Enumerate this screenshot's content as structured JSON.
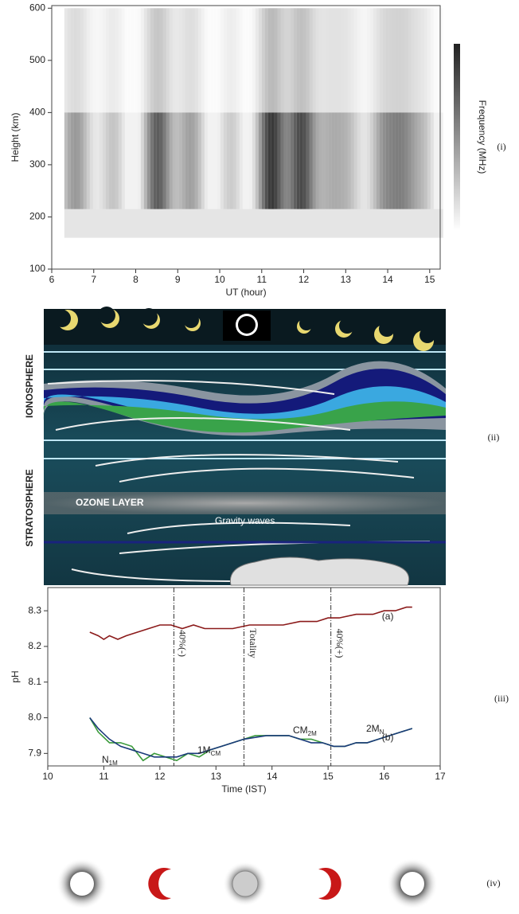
{
  "chart_data": [
    {
      "type": "heatmap",
      "xlabel": "UT (hour)",
      "ylabel": "Height (km)",
      "colorbar_label": "Frequency (MHz)",
      "panel_label": "(i)",
      "xlim": [
        6,
        15.25
      ],
      "ylim": [
        100,
        605
      ],
      "xticks": [
        6,
        7,
        8,
        9,
        10,
        11,
        12,
        13,
        14,
        15
      ],
      "yticks": [
        100,
        200,
        300,
        400,
        500,
        600
      ]
    },
    {
      "type": "line",
      "xlabel": "Time (IST)",
      "ylabel": "pH",
      "panel_label": "(iii)",
      "xlim": [
        10,
        17
      ],
      "ylim": [
        7.865,
        8.365
      ],
      "xticks": [
        10,
        11,
        12,
        13,
        14,
        15,
        16,
        17
      ],
      "yticks": [
        7.9,
        {
          "value": 8,
          "label": "8.0"
        },
        8.1,
        8.2,
        8.3
      ],
      "series": [
        {
          "name": "(a)",
          "color": "#8b1a1a",
          "x": [
            10.75,
            10.9,
            11.0,
            11.1,
            11.25,
            11.4,
            11.6,
            11.8,
            12.0,
            12.2,
            12.4,
            12.6,
            12.8,
            13.0,
            13.3,
            13.6,
            13.9,
            14.2,
            14.5,
            14.8,
            15.0,
            15.2,
            15.5,
            15.8,
            16.0,
            16.2,
            16.4,
            16.5
          ],
          "values": [
            8.24,
            8.23,
            8.22,
            8.23,
            8.22,
            8.23,
            8.24,
            8.25,
            8.26,
            8.26,
            8.25,
            8.26,
            8.25,
            8.25,
            8.25,
            8.26,
            8.26,
            8.26,
            8.27,
            8.27,
            8.28,
            8.28,
            8.29,
            8.29,
            8.3,
            8.3,
            8.31,
            8.31
          ]
        },
        {
          "color": "#3a9a3a",
          "x": [
            10.75,
            10.9,
            11.1,
            11.3,
            11.5,
            11.7,
            11.9,
            12.1,
            12.3,
            12.5,
            12.7,
            12.9,
            13.1,
            13.3,
            13.5,
            13.7,
            13.9,
            14.1,
            14.3,
            14.5,
            14.7,
            14.9,
            15.1,
            15.3,
            15.5,
            15.7,
            15.9,
            16.1,
            16.3,
            16.5
          ],
          "values": [
            8.0,
            7.96,
            7.93,
            7.93,
            7.92,
            7.88,
            7.9,
            7.89,
            7.88,
            7.9,
            7.89,
            7.91,
            7.92,
            7.93,
            7.94,
            7.95,
            7.95,
            7.95,
            7.95,
            7.94,
            7.94,
            7.93,
            7.92,
            7.92,
            7.93,
            7.93,
            7.94,
            7.95,
            7.96,
            7.97
          ]
        },
        {
          "name": "(b)",
          "color": "#1a3a7a",
          "x": [
            10.75,
            10.9,
            11.1,
            11.3,
            11.5,
            11.7,
            11.9,
            12.1,
            12.3,
            12.5,
            12.7,
            12.9,
            13.1,
            13.3,
            13.5,
            13.7,
            13.9,
            14.1,
            14.3,
            14.5,
            14.7,
            14.9,
            15.1,
            15.3,
            15.5,
            15.7,
            15.9,
            16.1,
            16.3,
            16.5
          ],
          "values": [
            8.0,
            7.97,
            7.94,
            7.92,
            7.91,
            7.9,
            7.89,
            7.89,
            7.89,
            7.9,
            7.9,
            7.91,
            7.92,
            7.93,
            7.94,
            7.945,
            7.95,
            7.95,
            7.95,
            7.94,
            7.93,
            7.93,
            7.92,
            7.92,
            7.93,
            7.93,
            7.94,
            7.95,
            7.96,
            7.97
          ]
        }
      ],
      "events": [
        {
          "x": 12.25,
          "label": "40%(-)"
        },
        {
          "x": 13.5,
          "label": "Totality"
        },
        {
          "x": 15.05,
          "label": "40%(+)"
        }
      ],
      "annotations": [
        {
          "text": "N",
          "sub": "1M"
        },
        {
          "text": "1M",
          "sub": "CM"
        },
        {
          "text": "CM",
          "sub": "2M"
        },
        {
          "text": "2M",
          "sub": "N"
        }
      ]
    }
  ],
  "diagram": {
    "panel_label": "(ii)",
    "ionosphere": "IONOSPHERE",
    "stratosphere": "STRATOSPHERE",
    "ozone": "OZONE LAYER",
    "waves": "Gravity waves"
  },
  "eclipse_sequence": {
    "panel_label": "(iv)"
  }
}
